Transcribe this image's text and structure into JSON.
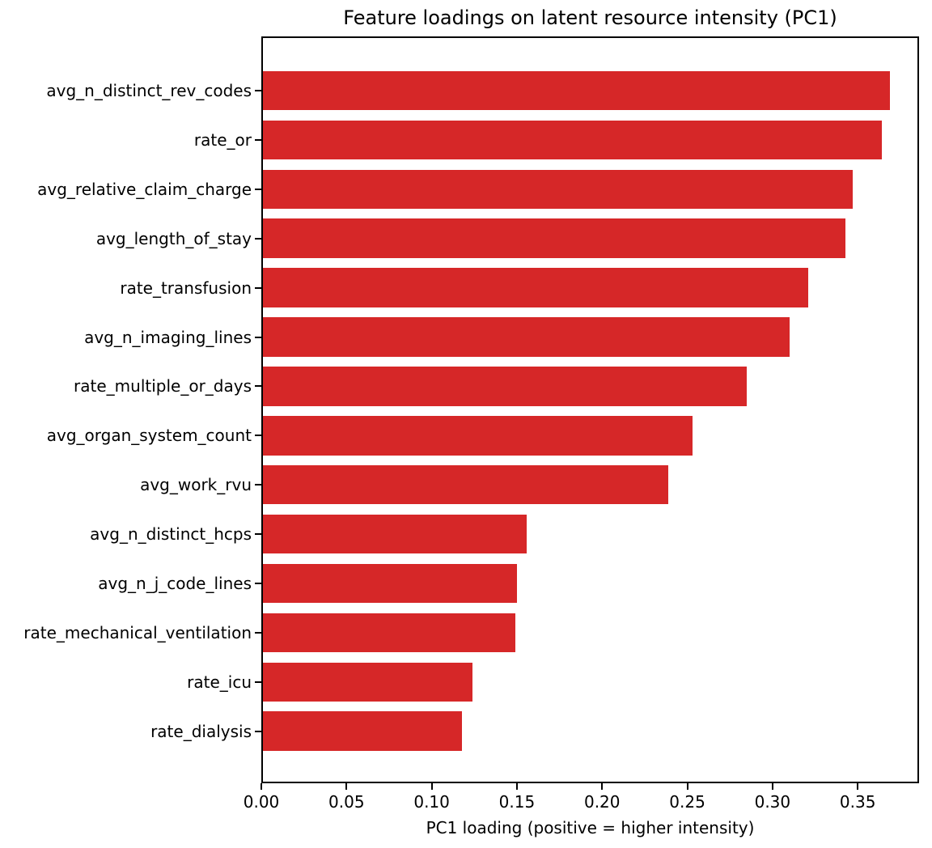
{
  "figure": {
    "title": "Feature loadings on latent resource intensity (PC1)",
    "xlabel": "PC1 loading (positive = higher intensity)"
  },
  "chart_data": {
    "type": "bar",
    "orientation": "horizontal",
    "title": "Feature loadings on latent resource intensity (PC1)",
    "xlabel": "PC1 loading (positive = higher intensity)",
    "ylabel": "",
    "categories": [
      "avg_n_distinct_rev_codes",
      "rate_or",
      "avg_relative_claim_charge",
      "avg_length_of_stay",
      "rate_transfusion",
      "avg_n_imaging_lines",
      "rate_multiple_or_days",
      "avg_organ_system_count",
      "avg_work_rvu",
      "avg_n_distinct_hcps",
      "avg_n_j_code_lines",
      "rate_mechanical_ventilation",
      "rate_icu",
      "rate_dialysis"
    ],
    "values": [
      0.368,
      0.363,
      0.346,
      0.342,
      0.32,
      0.309,
      0.284,
      0.252,
      0.238,
      0.155,
      0.149,
      0.148,
      0.123,
      0.117
    ],
    "xlim": [
      0,
      0.386
    ],
    "xticks": [
      0.0,
      0.05,
      0.1,
      0.15,
      0.2,
      0.25,
      0.3,
      0.35
    ],
    "xtick_labels": [
      "0.00",
      "0.05",
      "0.10",
      "0.15",
      "0.20",
      "0.25",
      "0.30",
      "0.35"
    ],
    "bar_color": "#d62728",
    "axis_color": "#000000",
    "text_color": "#000000",
    "background": "#ffffff",
    "grid": false,
    "legend": null
  }
}
